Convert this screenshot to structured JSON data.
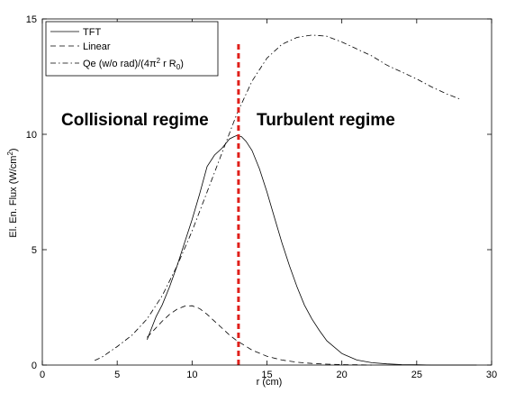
{
  "chart_data": {
    "type": "line",
    "title": "",
    "xlabel": "r (cm)",
    "ylabel": "El. En. Flux (W/cm",
    "ylabel_sup": "2",
    "ylabel_tail": ")",
    "xlim": [
      0,
      30
    ],
    "ylim": [
      0,
      15
    ],
    "xticks": [
      0,
      5,
      10,
      15,
      20,
      25,
      30
    ],
    "yticks": [
      0,
      5,
      10,
      15
    ],
    "grid": false,
    "legend_position": "top-left",
    "legend": {
      "tft": "TFT",
      "linear": "Linear",
      "qe_prefix": "Qe (w/o rad)/(4π",
      "qe_sup": "2",
      "qe_mid": " r R",
      "qe_sub": "0",
      "qe_suffix": ")"
    },
    "series": [
      {
        "name": "TFT",
        "style": "solid",
        "x": [
          7.0,
          7.3,
          7.6,
          8.0,
          8.5,
          9.0,
          9.5,
          10.0,
          10.5,
          11.0,
          11.5,
          12.0,
          12.5,
          12.8,
          13.0,
          13.3,
          13.6,
          14.0,
          14.5,
          15.0,
          15.5,
          16.0,
          16.5,
          17.0,
          17.5,
          18.0,
          18.5,
          19.0,
          20.0,
          21.0,
          22.0,
          23.0,
          24.0,
          25.0,
          26.0,
          27.0,
          28.0,
          29.0
        ],
        "y": [
          1.1,
          1.6,
          2.1,
          2.6,
          3.4,
          4.3,
          5.3,
          6.3,
          7.4,
          8.6,
          9.1,
          9.4,
          9.8,
          9.9,
          9.95,
          9.9,
          9.7,
          9.3,
          8.5,
          7.5,
          6.4,
          5.3,
          4.3,
          3.4,
          2.6,
          2.0,
          1.5,
          1.05,
          0.5,
          0.22,
          0.1,
          0.05,
          0.02,
          0.01,
          0.0,
          0.0,
          0.0,
          0.0
        ]
      },
      {
        "name": "Linear",
        "style": "dashed",
        "x": [
          7.0,
          7.5,
          8.0,
          8.5,
          9.0,
          9.5,
          10.0,
          10.5,
          11.0,
          11.5,
          12.0,
          12.5,
          13.0,
          13.5,
          14.0,
          15.0,
          16.0,
          17.0,
          18.0,
          19.0,
          20.0,
          21.0,
          22.0
        ],
        "y": [
          1.2,
          1.55,
          1.9,
          2.2,
          2.42,
          2.55,
          2.57,
          2.45,
          2.2,
          1.9,
          1.6,
          1.3,
          1.05,
          0.85,
          0.65,
          0.38,
          0.22,
          0.12,
          0.07,
          0.04,
          0.02,
          0.01,
          0.0
        ]
      },
      {
        "name": "Qe (w/o rad)/(4π² r R₀)",
        "style": "dashdot",
        "x": [
          3.5,
          4.0,
          5.0,
          6.0,
          7.0,
          8.0,
          9.0,
          10.0,
          11.0,
          12.0,
          13.0,
          13.5,
          14.0,
          15.0,
          16.0,
          17.0,
          18.0,
          19.0,
          20.0,
          21.0,
          22.0,
          23.0,
          24.0,
          25.0,
          26.0,
          27.0,
          28.0
        ],
        "y": [
          0.2,
          0.35,
          0.8,
          1.3,
          2.0,
          3.0,
          4.3,
          5.8,
          7.5,
          9.2,
          10.9,
          11.6,
          12.3,
          13.3,
          13.9,
          14.2,
          14.3,
          14.25,
          14.0,
          13.7,
          13.4,
          13.0,
          12.7,
          12.4,
          12.05,
          11.75,
          11.5
        ]
      }
    ],
    "separator": {
      "x": 13.1,
      "y_range": [
        0,
        14
      ],
      "color": "#e0201b",
      "style": "dashed"
    },
    "annotations": [
      {
        "name": "collisional",
        "text": "Collisional regime"
      },
      {
        "name": "turbulent",
        "text": "Turbulent regime"
      }
    ]
  }
}
